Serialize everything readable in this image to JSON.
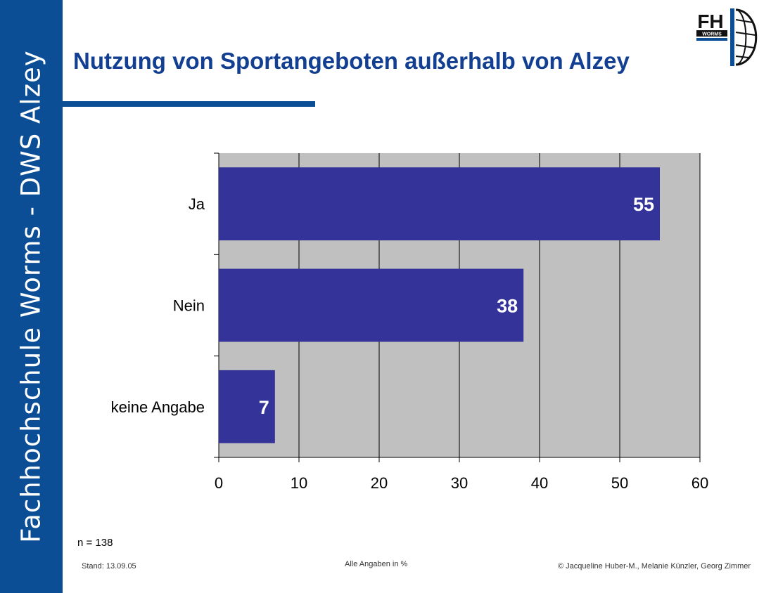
{
  "sidebar": {
    "text": "Fachhochschule Worms - DWS Alzey"
  },
  "logo": {
    "letters": "FH",
    "subtext": "WORMS"
  },
  "title": "Nutzung von Sportangeboten außerhalb von Alzey",
  "colors": {
    "brand_blue": "#0b4e96",
    "title_blue": "#123f91",
    "bar": "#333399",
    "plot_bg": "#c0c0c0"
  },
  "chart_data": {
    "type": "bar",
    "orientation": "horizontal",
    "categories": [
      "Ja",
      "Nein",
      "keine Angabe"
    ],
    "values": [
      55,
      38,
      7
    ],
    "xlim": [
      0,
      60
    ],
    "xticks": [
      0,
      10,
      20,
      30,
      40,
      50,
      60
    ],
    "grid": true,
    "data_labels": [
      "55",
      "38",
      "7"
    ]
  },
  "footer": {
    "sample_size": "n = 138",
    "date": "Stand: 13.09.05",
    "note": "Alle Angaben in %",
    "copyright": "© Jacqueline Huber-M., Melanie Künzler, Georg Zimmer"
  }
}
